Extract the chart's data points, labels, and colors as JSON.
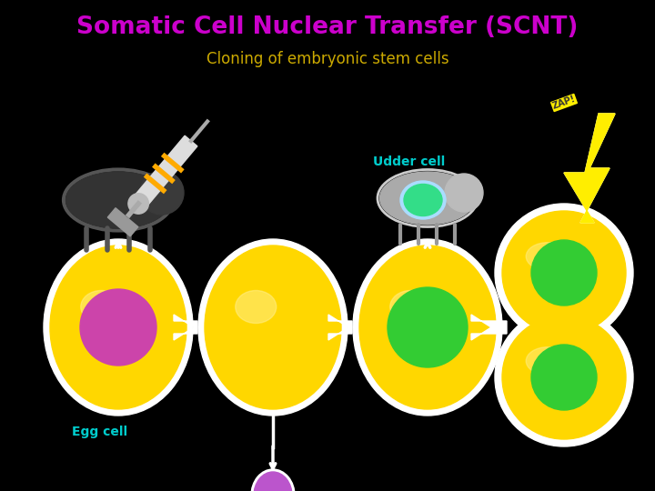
{
  "title": "Somatic Cell Nuclear Transfer (SCNT)",
  "subtitle": "Cloning of embryonic stem cells",
  "title_color": "#cc00cc",
  "subtitle_color": "#ccaa00",
  "background_color": "#000000",
  "label_udder": "Udder cell",
  "label_egg": "Egg cell",
  "label_color": "#00cccc",
  "figsize": [
    7.2,
    5.4
  ],
  "dpi": 100
}
